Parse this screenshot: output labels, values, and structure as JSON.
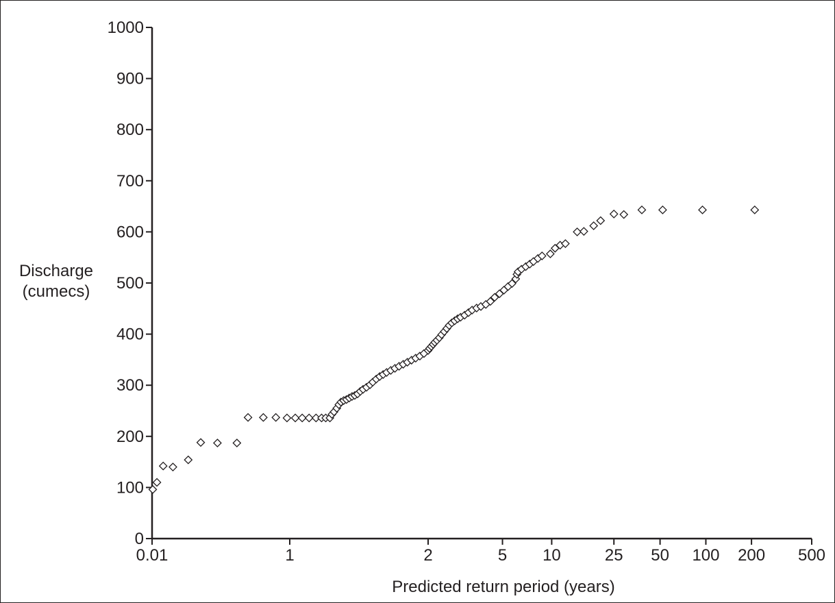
{
  "chart_data": {
    "type": "scatter",
    "title": "",
    "xlabel": "Predicted return period (years)",
    "ylabel_lines": [
      "Discharge",
      "(cumecs)"
    ],
    "ylim": [
      0,
      1000
    ],
    "y_ticks": [
      0,
      100,
      200,
      300,
      400,
      500,
      600,
      700,
      800,
      900,
      1000
    ],
    "x_scale": "reduced-variate (Gumbel probability paper)",
    "x_ticks": [
      {
        "label": "0.01",
        "value": 0.01
      },
      {
        "label": "1",
        "value": 1
      },
      {
        "label": "2",
        "value": 2
      },
      {
        "label": "5",
        "value": 5
      },
      {
        "label": "10",
        "value": 10
      },
      {
        "label": "25",
        "value": 25
      },
      {
        "label": "50",
        "value": 50
      },
      {
        "label": "100",
        "value": 100
      },
      {
        "label": "200",
        "value": 200
      },
      {
        "label": "500",
        "value": 500
      }
    ],
    "marker": "open-diamond",
    "grid": false,
    "legend": "none",
    "points": [
      {
        "x": 0.015,
        "y": 96
      },
      {
        "x": 0.045,
        "y": 110
      },
      {
        "x": 0.09,
        "y": 142
      },
      {
        "x": 0.16,
        "y": 140
      },
      {
        "x": 0.27,
        "y": 154
      },
      {
        "x": 0.36,
        "y": 188
      },
      {
        "x": 0.48,
        "y": 187
      },
      {
        "x": 0.62,
        "y": 187
      },
      {
        "x": 0.7,
        "y": 237
      },
      {
        "x": 0.81,
        "y": 237
      },
      {
        "x": 0.9,
        "y": 237
      },
      {
        "x": 0.98,
        "y": 236
      },
      {
        "x": 1.04,
        "y": 236
      },
      {
        "x": 1.09,
        "y": 236
      },
      {
        "x": 1.14,
        "y": 236
      },
      {
        "x": 1.19,
        "y": 236
      },
      {
        "x": 1.23,
        "y": 236
      },
      {
        "x": 1.26,
        "y": 236
      },
      {
        "x": 1.29,
        "y": 236
      },
      {
        "x": 1.305,
        "y": 243
      },
      {
        "x": 1.32,
        "y": 248
      },
      {
        "x": 1.34,
        "y": 255
      },
      {
        "x": 1.355,
        "y": 262
      },
      {
        "x": 1.37,
        "y": 267
      },
      {
        "x": 1.39,
        "y": 270
      },
      {
        "x": 1.41,
        "y": 272
      },
      {
        "x": 1.43,
        "y": 275
      },
      {
        "x": 1.45,
        "y": 278
      },
      {
        "x": 1.47,
        "y": 280
      },
      {
        "x": 1.49,
        "y": 283
      },
      {
        "x": 1.51,
        "y": 288
      },
      {
        "x": 1.53,
        "y": 292
      },
      {
        "x": 1.555,
        "y": 296
      },
      {
        "x": 1.58,
        "y": 301
      },
      {
        "x": 1.6,
        "y": 306
      },
      {
        "x": 1.625,
        "y": 312
      },
      {
        "x": 1.65,
        "y": 317
      },
      {
        "x": 1.675,
        "y": 321
      },
      {
        "x": 1.7,
        "y": 325
      },
      {
        "x": 1.73,
        "y": 329
      },
      {
        "x": 1.76,
        "y": 333
      },
      {
        "x": 1.79,
        "y": 337
      },
      {
        "x": 1.82,
        "y": 341
      },
      {
        "x": 1.85,
        "y": 345
      },
      {
        "x": 1.88,
        "y": 349
      },
      {
        "x": 1.91,
        "y": 353
      },
      {
        "x": 1.94,
        "y": 357
      },
      {
        "x": 1.97,
        "y": 362
      },
      {
        "x": 2.0,
        "y": 368
      },
      {
        "x": 2.03,
        "y": 372
      },
      {
        "x": 2.07,
        "y": 376
      },
      {
        "x": 2.11,
        "y": 380
      },
      {
        "x": 2.15,
        "y": 384
      },
      {
        "x": 2.2,
        "y": 388
      },
      {
        "x": 2.26,
        "y": 393
      },
      {
        "x": 2.32,
        "y": 399
      },
      {
        "x": 2.39,
        "y": 405
      },
      {
        "x": 2.46,
        "y": 411
      },
      {
        "x": 2.53,
        "y": 417
      },
      {
        "x": 2.61,
        "y": 422
      },
      {
        "x": 2.7,
        "y": 426
      },
      {
        "x": 2.8,
        "y": 430
      },
      {
        "x": 2.9,
        "y": 433
      },
      {
        "x": 3.05,
        "y": 437
      },
      {
        "x": 3.2,
        "y": 442
      },
      {
        "x": 3.35,
        "y": 447
      },
      {
        "x": 3.55,
        "y": 451
      },
      {
        "x": 3.75,
        "y": 454
      },
      {
        "x": 4.0,
        "y": 458
      },
      {
        "x": 4.25,
        "y": 464
      },
      {
        "x": 4.5,
        "y": 472
      },
      {
        "x": 4.8,
        "y": 479
      },
      {
        "x": 5.1,
        "y": 486
      },
      {
        "x": 5.4,
        "y": 493
      },
      {
        "x": 5.7,
        "y": 499
      },
      {
        "x": 6.0,
        "y": 508
      },
      {
        "x": 6.1,
        "y": 517
      },
      {
        "x": 6.2,
        "y": 522
      },
      {
        "x": 6.5,
        "y": 527
      },
      {
        "x": 6.9,
        "y": 532
      },
      {
        "x": 7.3,
        "y": 537
      },
      {
        "x": 7.7,
        "y": 542
      },
      {
        "x": 8.2,
        "y": 548
      },
      {
        "x": 8.7,
        "y": 553
      },
      {
        "x": 9.8,
        "y": 557
      },
      {
        "x": 10.5,
        "y": 568
      },
      {
        "x": 11.3,
        "y": 574
      },
      {
        "x": 12.2,
        "y": 577
      },
      {
        "x": 14.5,
        "y": 600
      },
      {
        "x": 16.0,
        "y": 601
      },
      {
        "x": 18.5,
        "y": 612
      },
      {
        "x": 20.5,
        "y": 622
      },
      {
        "x": 25.0,
        "y": 635
      },
      {
        "x": 29.0,
        "y": 634
      },
      {
        "x": 38.0,
        "y": 643
      },
      {
        "x": 52.0,
        "y": 643
      },
      {
        "x": 95.0,
        "y": 643
      },
      {
        "x": 210.0,
        "y": 643
      }
    ]
  }
}
